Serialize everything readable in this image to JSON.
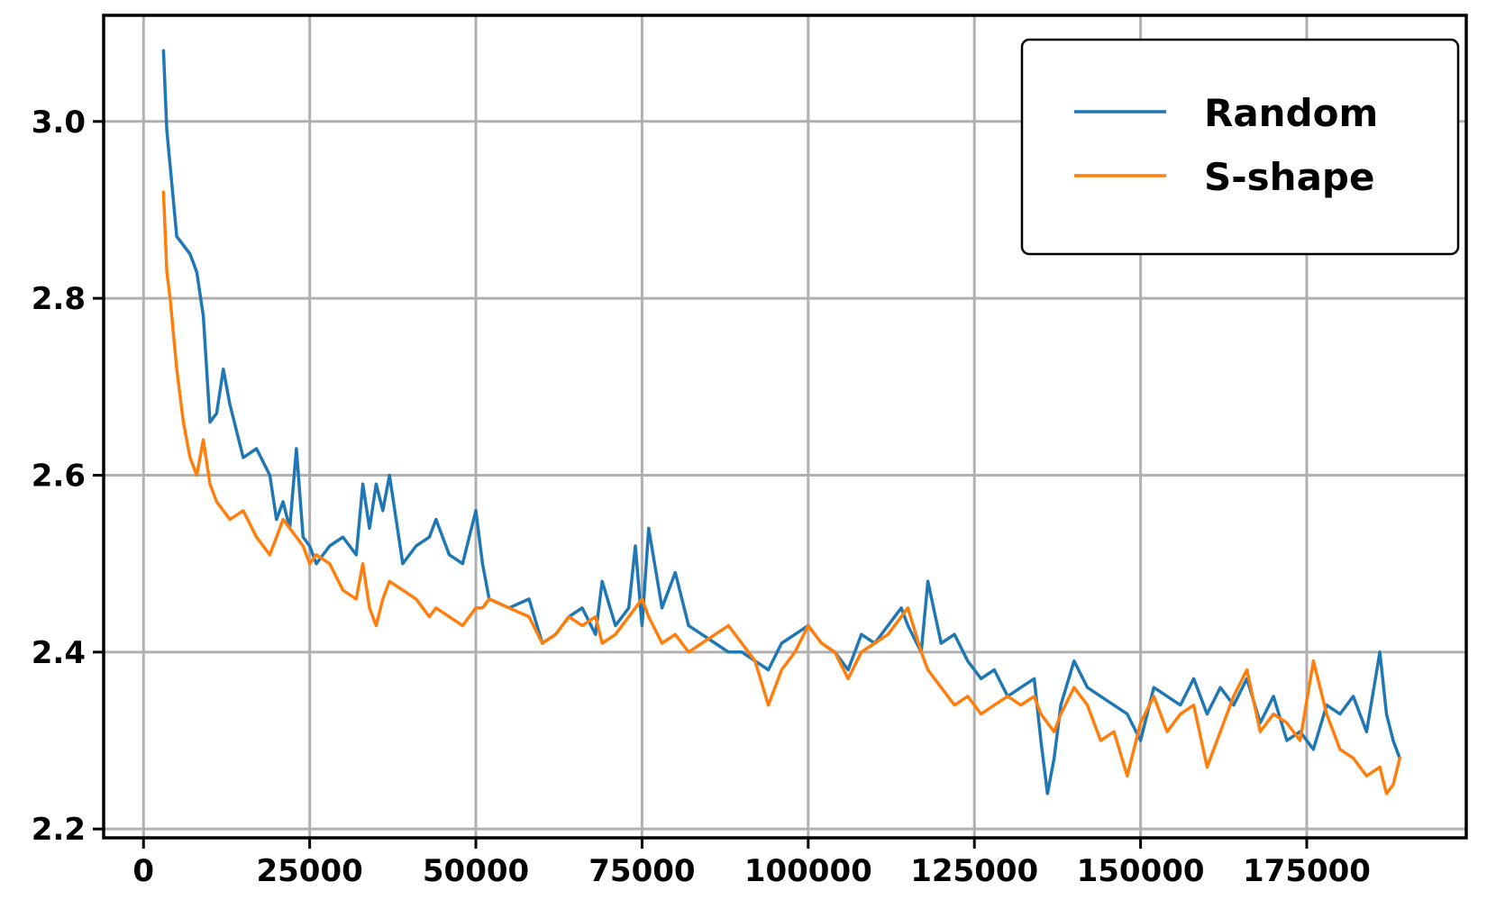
{
  "chart_data": {
    "type": "line",
    "title": "",
    "xlabel": "",
    "ylabel": "",
    "xlim": [
      -6000,
      199000
    ],
    "ylim": [
      2.19,
      3.12
    ],
    "xticks": [
      0,
      25000,
      50000,
      75000,
      100000,
      125000,
      150000,
      175000
    ],
    "xtick_labels": [
      "0",
      "25000",
      "50000",
      "75000",
      "100000",
      "125000",
      "150000",
      "175000"
    ],
    "yticks": [
      2.2,
      2.4,
      2.6,
      2.8,
      3.0
    ],
    "ytick_labels": [
      "2.2",
      "2.4",
      "2.6",
      "2.8",
      "3.0"
    ],
    "grid": true,
    "legend": "top-right",
    "series": [
      {
        "name": "Random",
        "color": "#1f77b4",
        "x": [
          3000,
          3500,
          4000,
          5000,
          6000,
          7000,
          8000,
          9000,
          10000,
          11000,
          12000,
          13000,
          15000,
          17000,
          19000,
          20000,
          21000,
          22000,
          23000,
          24000,
          25000,
          26000,
          28000,
          30000,
          32000,
          33000,
          34000,
          35000,
          36000,
          37000,
          39000,
          41000,
          43000,
          44000,
          46000,
          48000,
          50000,
          51000,
          52000,
          55000,
          58000,
          60000,
          62000,
          64000,
          66000,
          68000,
          69000,
          71000,
          73000,
          74000,
          75000,
          76000,
          78000,
          80000,
          82000,
          84000,
          86000,
          88000,
          90000,
          92000,
          94000,
          96000,
          98000,
          100000,
          102000,
          104000,
          106000,
          108000,
          110000,
          112000,
          114000,
          115000,
          117000,
          118000,
          120000,
          122000,
          124000,
          126000,
          128000,
          130000,
          132000,
          134000,
          135000,
          136000,
          137000,
          138000,
          140000,
          142000,
          144000,
          146000,
          148000,
          150000,
          152000,
          154000,
          156000,
          158000,
          160000,
          162000,
          164000,
          166000,
          168000,
          170000,
          172000,
          174000,
          176000,
          178000,
          180000,
          182000,
          184000,
          186000,
          187000,
          188000,
          189000
        ],
        "values": [
          3.08,
          2.99,
          2.95,
          2.87,
          2.86,
          2.85,
          2.83,
          2.78,
          2.66,
          2.67,
          2.72,
          2.68,
          2.62,
          2.63,
          2.6,
          2.55,
          2.57,
          2.54,
          2.63,
          2.53,
          2.52,
          2.5,
          2.52,
          2.53,
          2.51,
          2.59,
          2.54,
          2.59,
          2.56,
          2.6,
          2.5,
          2.52,
          2.53,
          2.55,
          2.51,
          2.5,
          2.56,
          2.5,
          2.46,
          2.45,
          2.46,
          2.41,
          2.42,
          2.44,
          2.45,
          2.42,
          2.48,
          2.43,
          2.45,
          2.52,
          2.43,
          2.54,
          2.45,
          2.49,
          2.43,
          2.42,
          2.41,
          2.4,
          2.4,
          2.39,
          2.38,
          2.41,
          2.42,
          2.43,
          2.41,
          2.4,
          2.38,
          2.42,
          2.41,
          2.43,
          2.45,
          2.43,
          2.4,
          2.48,
          2.41,
          2.42,
          2.39,
          2.37,
          2.38,
          2.35,
          2.36,
          2.37,
          2.3,
          2.24,
          2.28,
          2.34,
          2.39,
          2.36,
          2.35,
          2.34,
          2.33,
          2.3,
          2.36,
          2.35,
          2.34,
          2.37,
          2.33,
          2.36,
          2.34,
          2.37,
          2.32,
          2.35,
          2.3,
          2.31,
          2.29,
          2.34,
          2.33,
          2.35,
          2.31,
          2.4,
          2.33,
          2.3,
          2.28
        ]
      },
      {
        "name": "S-shape",
        "color": "#ff7f0e",
        "x": [
          3000,
          3500,
          4000,
          5000,
          6000,
          7000,
          8000,
          9000,
          10000,
          11000,
          12000,
          13000,
          15000,
          17000,
          19000,
          20000,
          21000,
          22000,
          23000,
          24000,
          25000,
          26000,
          28000,
          30000,
          32000,
          33000,
          34000,
          35000,
          36000,
          37000,
          39000,
          41000,
          43000,
          44000,
          46000,
          48000,
          50000,
          51000,
          52000,
          55000,
          58000,
          60000,
          62000,
          64000,
          66000,
          68000,
          69000,
          71000,
          73000,
          74000,
          75000,
          76000,
          78000,
          80000,
          82000,
          84000,
          86000,
          88000,
          90000,
          92000,
          94000,
          96000,
          98000,
          100000,
          102000,
          104000,
          106000,
          108000,
          110000,
          112000,
          114000,
          115000,
          117000,
          118000,
          120000,
          122000,
          124000,
          126000,
          128000,
          130000,
          132000,
          134000,
          135000,
          136000,
          137000,
          138000,
          140000,
          142000,
          144000,
          146000,
          148000,
          150000,
          152000,
          154000,
          156000,
          158000,
          160000,
          162000,
          164000,
          166000,
          168000,
          170000,
          172000,
          174000,
          176000,
          178000,
          180000,
          182000,
          184000,
          186000,
          187000,
          188000,
          189000
        ],
        "values": [
          2.92,
          2.83,
          2.8,
          2.72,
          2.66,
          2.62,
          2.6,
          2.64,
          2.59,
          2.57,
          2.56,
          2.55,
          2.56,
          2.53,
          2.51,
          2.53,
          2.55,
          2.54,
          2.53,
          2.52,
          2.5,
          2.51,
          2.5,
          2.47,
          2.46,
          2.5,
          2.45,
          2.43,
          2.46,
          2.48,
          2.47,
          2.46,
          2.44,
          2.45,
          2.44,
          2.43,
          2.45,
          2.45,
          2.46,
          2.45,
          2.44,
          2.41,
          2.42,
          2.44,
          2.43,
          2.44,
          2.41,
          2.42,
          2.44,
          2.45,
          2.46,
          2.44,
          2.41,
          2.42,
          2.4,
          2.41,
          2.42,
          2.43,
          2.41,
          2.39,
          2.34,
          2.38,
          2.4,
          2.43,
          2.41,
          2.4,
          2.37,
          2.4,
          2.41,
          2.42,
          2.44,
          2.45,
          2.4,
          2.38,
          2.36,
          2.34,
          2.35,
          2.33,
          2.34,
          2.35,
          2.34,
          2.35,
          2.33,
          2.32,
          2.31,
          2.33,
          2.36,
          2.34,
          2.3,
          2.31,
          2.26,
          2.32,
          2.35,
          2.31,
          2.33,
          2.34,
          2.27,
          2.31,
          2.35,
          2.38,
          2.31,
          2.33,
          2.32,
          2.3,
          2.39,
          2.33,
          2.29,
          2.28,
          2.26,
          2.27,
          2.24,
          2.25,
          2.28
        ]
      }
    ]
  }
}
